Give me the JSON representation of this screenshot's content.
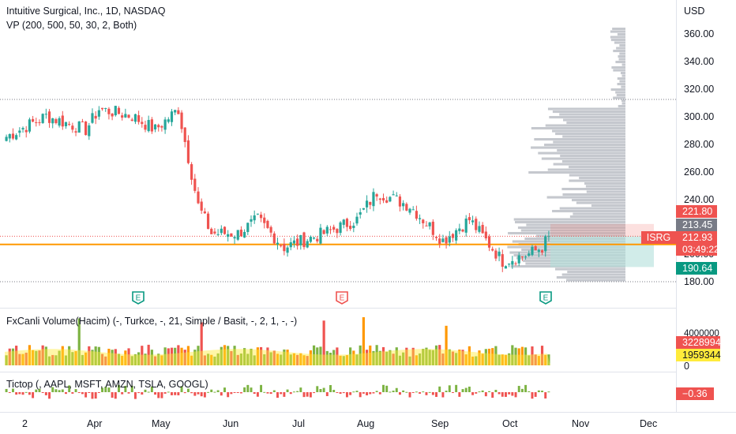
{
  "header": {
    "symbol_title": "Intuitive Surgical, Inc., 1D, NASDAQ",
    "vp_indicator": "VP (200, 500, 50, 30, 2, Both)"
  },
  "price_axis": {
    "currency": "USD",
    "ticks": [
      "360.00",
      "340.00",
      "320.00",
      "300.00",
      "280.00",
      "260.00",
      "240.00",
      "200.00",
      "180.00"
    ]
  },
  "price_badges": {
    "high": "221.80",
    "vwap": "213.45",
    "symbol": "ISRG",
    "last": "212.93",
    "countdown": "03:49:22",
    "low": "190.64"
  },
  "volume_pane": {
    "legend": "FxCanli Volume(Hacim) (-, Turkce, -, 21, Simple / Basit, -, 2, 1, -, -)",
    "axis_top": "4000000",
    "volume_value": "3228994",
    "avg_value": "1959344",
    "zero": "0"
  },
  "tictop_pane": {
    "legend": "Tictop (, AAPL, MSFT, AMZN, TSLA, GOOGL)",
    "value": "−0.36"
  },
  "time_axis": {
    "labels": [
      "2",
      "Apr",
      "May",
      "Jun",
      "Jul",
      "Aug",
      "Sep",
      "Oct",
      "Nov",
      "Dec"
    ]
  },
  "earnings": [
    {
      "letter": "E",
      "kind": "past-beat"
    },
    {
      "letter": "E",
      "kind": "past-miss"
    },
    {
      "letter": "E",
      "kind": "upcoming"
    }
  ],
  "colors": {
    "up": "#26a69a",
    "down": "#ef5350",
    "vol_up": "#7cb342",
    "vol_down": "#ef5350",
    "vol_mid": "#ff9800",
    "avg_band": "#ffeb3b",
    "vp": "#b2b5be",
    "poc": "#ff9800",
    "value_area": "#b2dfdb"
  },
  "chart_data": {
    "type": "candlestick",
    "title": "Intuitive Surgical, Inc., 1D, NASDAQ",
    "y_unit": "USD",
    "ylim": [
      170,
      370
    ],
    "close_monthly": [
      {
        "month": "Mar",
        "value": 295
      },
      {
        "month": "Apr",
        "value": 300
      },
      {
        "month": "May",
        "value": 215
      },
      {
        "month": "Jun",
        "value": 225
      },
      {
        "month": "Jul",
        "value": 210
      },
      {
        "month": "Aug",
        "value": 235
      },
      {
        "month": "Sep",
        "value": 210
      },
      {
        "month": "Oct",
        "value": 212.93
      }
    ],
    "last_price": 212.93,
    "poc_price": 207,
    "volume_profile_max_price": 362
  }
}
